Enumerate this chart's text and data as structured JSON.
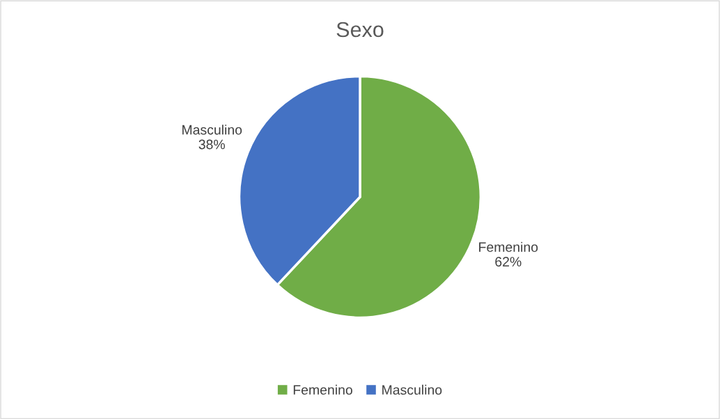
{
  "chart_data": {
    "type": "pie",
    "title": "Sexo",
    "categories": [
      "Femenino",
      "Masculino"
    ],
    "values": [
      62,
      38
    ],
    "colors": [
      "#70ad47",
      "#4472c4"
    ],
    "value_labels": [
      "62%",
      "38%"
    ],
    "legend": "bottom"
  }
}
